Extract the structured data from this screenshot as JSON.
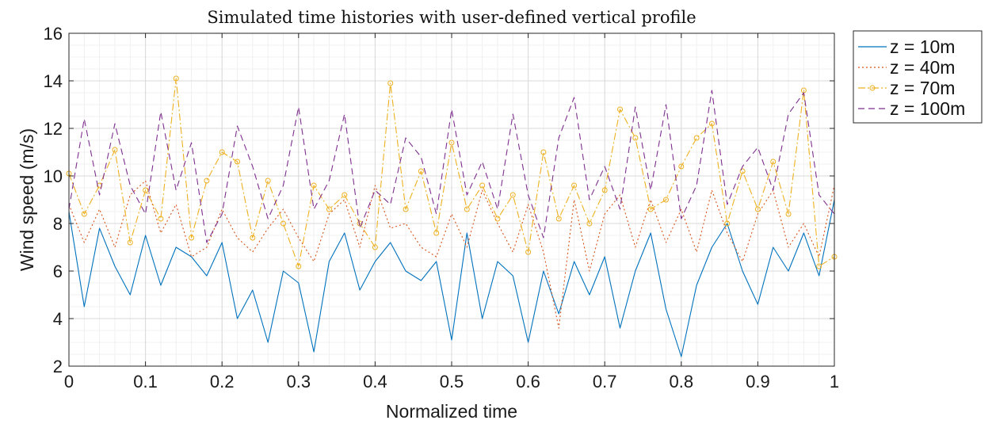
{
  "chart_data": {
    "type": "line",
    "title": "Simulated time histories with user-defined vertical profile",
    "xlabel": "Normalized time",
    "ylabel": "Wind speed (m/s)",
    "xlim": [
      0,
      1
    ],
    "ylim": [
      2,
      16
    ],
    "xticks": [
      0,
      0.1,
      0.2,
      0.3,
      0.4,
      0.5,
      0.6,
      0.7,
      0.8,
      0.9,
      1
    ],
    "xtick_labels": [
      "0",
      "0.1",
      "0.2",
      "0.3",
      "0.4",
      "0.5",
      "0.6",
      "0.7",
      "0.8",
      "0.9",
      "1"
    ],
    "yticks": [
      2,
      4,
      6,
      8,
      10,
      12,
      14,
      16
    ],
    "ytick_labels": [
      "2",
      "4",
      "6",
      "8",
      "10",
      "12",
      "14",
      "16"
    ],
    "grid": true,
    "minor_grid": true,
    "legend_position": "outside-top-right",
    "x": [
      0,
      0.02,
      0.04,
      0.06,
      0.08,
      0.1,
      0.12,
      0.14,
      0.16,
      0.18,
      0.2,
      0.22,
      0.24,
      0.26,
      0.28,
      0.3,
      0.32,
      0.34,
      0.36,
      0.38,
      0.4,
      0.42,
      0.44,
      0.46,
      0.48,
      0.5,
      0.52,
      0.54,
      0.56,
      0.58,
      0.6,
      0.62,
      0.64,
      0.66,
      0.68,
      0.7,
      0.72,
      0.74,
      0.76,
      0.78,
      0.8,
      0.82,
      0.84,
      0.86,
      0.88,
      0.9,
      0.92,
      0.94,
      0.96,
      0.98,
      1.0
    ],
    "series": [
      {
        "name": "z = 10m",
        "color": "#0072BD",
        "line_style": "solid",
        "marker": "none",
        "values": [
          8.5,
          4.5,
          7.8,
          6.2,
          5.0,
          7.5,
          5.4,
          7.0,
          6.6,
          5.8,
          7.2,
          4.0,
          5.2,
          3.0,
          6.0,
          5.5,
          2.6,
          6.4,
          7.6,
          5.2,
          6.4,
          7.2,
          6.0,
          5.6,
          6.4,
          3.1,
          7.6,
          4.0,
          6.4,
          5.8,
          3.0,
          6.0,
          4.2,
          6.4,
          5.0,
          6.6,
          3.6,
          6.0,
          7.6,
          4.4,
          2.4,
          5.4,
          7.0,
          8.0,
          6.0,
          4.6,
          7.0,
          6.0,
          7.6,
          5.8,
          9.0
        ]
      },
      {
        "name": "z = 40m",
        "color": "#D95319",
        "line_style": "dotted",
        "marker": "none",
        "values": [
          8.8,
          7.2,
          8.6,
          7.0,
          9.2,
          9.8,
          7.6,
          8.8,
          6.6,
          7.0,
          8.6,
          7.4,
          6.8,
          7.8,
          8.6,
          7.4,
          6.4,
          8.4,
          9.0,
          7.0,
          9.6,
          7.8,
          8.0,
          7.0,
          6.6,
          8.4,
          7.0,
          9.4,
          8.0,
          6.8,
          8.8,
          6.8,
          3.6,
          9.0,
          6.0,
          8.4,
          9.2,
          7.0,
          9.0,
          7.2,
          8.6,
          6.8,
          9.4,
          7.6,
          6.4,
          8.4,
          9.4,
          7.0,
          8.0,
          6.6,
          9.6
        ]
      },
      {
        "name": "z = 70m",
        "color": "#EDB120",
        "line_style": "dashdot",
        "marker": "circle",
        "values": [
          10.1,
          8.4,
          9.6,
          11.1,
          7.2,
          9.4,
          8.2,
          14.1,
          7.4,
          9.8,
          11.0,
          10.6,
          7.4,
          9.8,
          8.0,
          6.2,
          9.6,
          8.6,
          9.2,
          8.0,
          7.0,
          13.9,
          8.6,
          10.2,
          7.6,
          11.4,
          8.6,
          9.6,
          8.2,
          9.2,
          6.8,
          11.0,
          8.2,
          9.6,
          8.0,
          9.4,
          12.8,
          11.6,
          8.6,
          9.0,
          10.4,
          11.6,
          12.2,
          8.0,
          10.2,
          8.6,
          10.6,
          8.4,
          13.6,
          6.2,
          6.6
        ]
      },
      {
        "name": "z = 100m",
        "color": "#7E2F8E",
        "line_style": "dashed",
        "marker": "none",
        "values": [
          8.6,
          12.4,
          9.2,
          12.2,
          9.6,
          8.4,
          12.7,
          9.4,
          11.4,
          7.2,
          8.4,
          12.1,
          10.4,
          8.2,
          9.6,
          12.9,
          8.6,
          9.8,
          12.6,
          7.8,
          9.4,
          8.8,
          11.6,
          10.8,
          8.4,
          12.8,
          9.2,
          10.6,
          8.6,
          12.6,
          9.2,
          7.4,
          11.6,
          13.3,
          9.0,
          10.4,
          8.6,
          12.9,
          9.4,
          13.0,
          8.2,
          9.6,
          13.6,
          8.8,
          10.4,
          11.2,
          9.4,
          12.6,
          13.5,
          9.2,
          8.4
        ]
      }
    ]
  }
}
